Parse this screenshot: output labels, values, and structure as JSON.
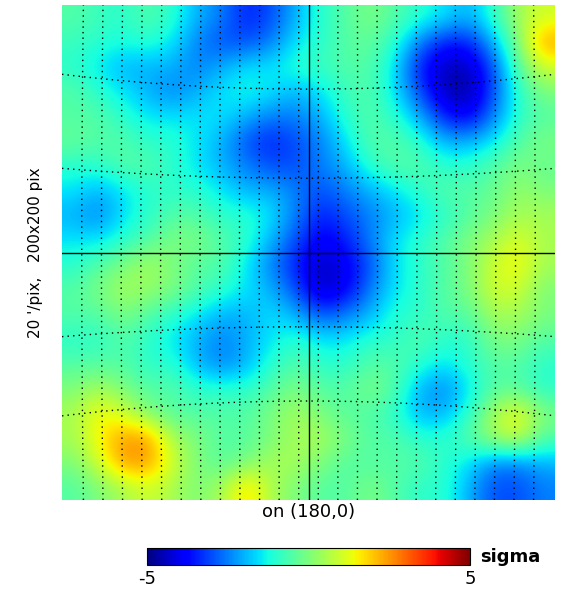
{
  "chart_data": {
    "type": "heatmap",
    "xlabel": "on (180,0)",
    "ylabel": "20 '/pix,   200x200 pix",
    "colorbar_label": "sigma",
    "colorbar_range": [
      -5,
      5
    ],
    "colorbar_ticks": [
      -5,
      5
    ],
    "color": "jet",
    "tick_labels": false,
    "cells": [
      [
        -0.5,
        -0.8,
        -1,
        -0.5,
        -1,
        -2,
        -2.5,
        -3.5,
        -3,
        -2,
        -1,
        -0.5,
        0,
        -0.5,
        -1,
        -1.5,
        -2,
        -1,
        0.5,
        1
      ],
      [
        -0.8,
        -1,
        -1.2,
        -1,
        -1.5,
        -2.5,
        -3,
        -3,
        -2.5,
        -1.5,
        -1,
        -0.5,
        -0.3,
        -1,
        -2.5,
        -3.5,
        -3.5,
        -2,
        0,
        2.5
      ],
      [
        -1,
        -1.5,
        -2,
        -2,
        -2,
        -2.5,
        -2,
        -1.5,
        -1.5,
        -1,
        -0.8,
        -0.5,
        -0.5,
        -1.5,
        -3.5,
        -4.5,
        -4.5,
        -3,
        -0.5,
        1
      ],
      [
        -0.5,
        -1,
        -1.5,
        -2,
        -2.5,
        -2,
        -1.5,
        -1.2,
        -1.5,
        -2,
        -1.5,
        -0.8,
        -0.5,
        -1.5,
        -3,
        -4.5,
        -4.8,
        -3,
        -1,
        0
      ],
      [
        -0.5,
        -0.5,
        -1,
        -1.5,
        -1.5,
        -1.5,
        -1.5,
        -2,
        -2.5,
        -2.5,
        -2,
        -1,
        -0.5,
        -1,
        -2,
        -3.5,
        -4,
        -2.5,
        -1,
        -0.5
      ],
      [
        -0.3,
        -0.5,
        -0.5,
        -1,
        -1,
        -1.5,
        -2,
        -3,
        -3.5,
        -3,
        -2.5,
        -1.5,
        -0.5,
        -0.5,
        -1,
        -2,
        -2,
        -1.5,
        -0.5,
        0
      ],
      [
        -1,
        -1,
        -0.5,
        -0.5,
        -1,
        -1.5,
        -2,
        -2.5,
        -3,
        -3,
        -2.5,
        -2,
        -1,
        -0.5,
        -0.5,
        -1,
        -1,
        -0.5,
        0,
        -0.3
      ],
      [
        -1.5,
        -2,
        -1.5,
        -1,
        -1,
        -1,
        -1.5,
        -2,
        -2,
        -2.5,
        -3,
        -2.5,
        -2,
        -1.5,
        -1,
        -0.5,
        -0.5,
        -0.3,
        0.3,
        0
      ],
      [
        -2,
        -2.5,
        -1.5,
        -1,
        -0.5,
        -0.5,
        -1,
        -1,
        -1.5,
        -2.5,
        -3.5,
        -3,
        -2.5,
        -2,
        -1.5,
        -1,
        -0.5,
        0,
        0.5,
        0.5
      ],
      [
        -1.5,
        -1.5,
        -1,
        -0.5,
        0,
        0,
        -0.5,
        -1,
        -2,
        -3,
        -4,
        -3.5,
        -2.5,
        -1.5,
        -1,
        -0.5,
        0,
        0.5,
        1.2,
        0.5
      ],
      [
        -1,
        -0.5,
        0,
        0.5,
        0,
        -0.5,
        -0.5,
        -1.5,
        -2.5,
        -3.5,
        -4.5,
        -4,
        -3,
        -1.5,
        -1,
        -0.5,
        0,
        1,
        1.5,
        0.5
      ],
      [
        -0.5,
        0,
        0.5,
        0.3,
        0,
        -0.5,
        -1,
        -1.5,
        -2,
        -3,
        -4.5,
        -4,
        -2.5,
        -1.5,
        -1,
        -0.5,
        0,
        1,
        1,
        0
      ],
      [
        -0.5,
        -0.5,
        0,
        -0.5,
        -1,
        -1.5,
        -2,
        -2,
        -1.5,
        -2,
        -3,
        -2.5,
        -2,
        -1,
        -1,
        -0.5,
        -0.5,
        0.5,
        0.5,
        0
      ],
      [
        -1,
        -1,
        -0.5,
        -1,
        -1.5,
        -2,
        -2.5,
        -2,
        -1.5,
        -1,
        -1.5,
        -1.5,
        -1,
        -1,
        -0.5,
        -1,
        -1,
        0,
        0,
        -0.5
      ],
      [
        -0.5,
        -0.5,
        -0.5,
        -1,
        -1,
        -2,
        -2.5,
        -2,
        -1,
        -0.5,
        -1,
        -1,
        -0.5,
        -0.5,
        -1,
        -1.5,
        -1,
        -0.5,
        -0.5,
        -1
      ],
      [
        0,
        0.5,
        0,
        -0.5,
        -0.5,
        -1,
        -1,
        -1,
        -0.5,
        0,
        -0.5,
        -0.5,
        0,
        -0.5,
        -2,
        -2.5,
        -1.5,
        -0.5,
        -0.5,
        -1
      ],
      [
        0.5,
        1.5,
        1,
        0,
        -0.5,
        -0.5,
        -0.5,
        -0.5,
        0,
        0.5,
        0,
        -0.5,
        -0.5,
        -1,
        -2,
        -2,
        -1,
        0.5,
        1.5,
        0
      ],
      [
        0.5,
        1.5,
        2.5,
        2.5,
        0.5,
        0,
        -0.5,
        -0.5,
        0,
        0.5,
        0.5,
        0,
        -0.5,
        -0.5,
        -1,
        -1,
        -0.5,
        0.5,
        1,
        -0.5
      ],
      [
        0,
        1,
        2.5,
        2.5,
        1,
        0,
        -0.5,
        0,
        0.5,
        0.5,
        0,
        -0.5,
        -0.5,
        -0.5,
        -0.5,
        -1,
        -1.5,
        -2.5,
        -2.5,
        -2
      ],
      [
        -0.5,
        0,
        0.5,
        1,
        0.5,
        0,
        0.5,
        2,
        0.5,
        0,
        -0.5,
        -0.5,
        0,
        -0.5,
        -1,
        -1,
        -2,
        -3,
        -3,
        -2.5
      ]
    ]
  }
}
